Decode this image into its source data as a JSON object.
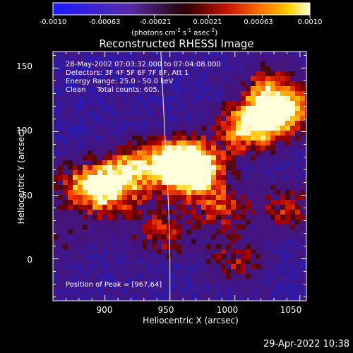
{
  "colorbar": {
    "ticks": [
      "-0.0010",
      "-0.00063",
      "-0.00021",
      "0.00021",
      "0.00063",
      "0.0010"
    ],
    "units": "(photons cm",
    "units_exp1": "-2",
    "units_mid1": " s",
    "units_exp2": "-1",
    "units_mid2": " asec",
    "units_exp3": "-2",
    "units_end": ")"
  },
  "title": "Reconstructed RHESSI Image",
  "annotations": {
    "time": "28-May-2002 07:03:32.000 to 07:04:08.000",
    "detectors": "Detectors: 3F 4F 5F 6F 7F 8F, Att 1",
    "energy": "Energy Range: 25.0 - 50.0 keV",
    "method": "Clean     Total counts: 605.",
    "peak": "Position of Peak = [967,64]"
  },
  "footer_timestamp": "29-Apr-2022 10:38",
  "chart_data": {
    "type": "heatmap",
    "title": "Reconstructed RHESSI Image",
    "xlabel": "Heliocentric X (arcsec)",
    "ylabel": "Heliocentric Y (arcsec)",
    "xlim": [
      860,
      1055
    ],
    "ylim": [
      -33,
      163
    ],
    "xticks": [
      "900",
      "950",
      "1000",
      "1050"
    ],
    "yticks": [
      "0",
      "50",
      "100",
      "150"
    ],
    "color_scale": [
      -0.001,
      0.001
    ],
    "peak": [
      967,
      64
    ],
    "bright_regions": [
      {
        "x": 967,
        "y": 68,
        "level": 1.0
      },
      {
        "x": 955,
        "y": 78,
        "level": 0.9
      },
      {
        "x": 1035,
        "y": 115,
        "level": 0.85
      },
      {
        "x": 1010,
        "y": 105,
        "level": 0.8
      },
      {
        "x": 900,
        "y": 55,
        "level": 0.75
      },
      {
        "x": 918,
        "y": 72,
        "level": 0.7
      },
      {
        "x": 990,
        "y": 40,
        "level": 0.6
      },
      {
        "x": 1040,
        "y": 40,
        "level": 0.55
      },
      {
        "x": 945,
        "y": 20,
        "level": 0.55
      },
      {
        "x": 1000,
        "y": 0,
        "level": 0.5
      },
      {
        "x": 880,
        "y": 60,
        "level": 0.5
      },
      {
        "x": 1025,
        "y": 135,
        "level": 0.55
      }
    ],
    "limb_curve": [
      [
        943,
        163
      ],
      [
        945,
        120
      ],
      [
        947,
        80
      ],
      [
        949,
        40
      ],
      [
        950,
        0
      ],
      [
        950,
        -33
      ]
    ]
  }
}
